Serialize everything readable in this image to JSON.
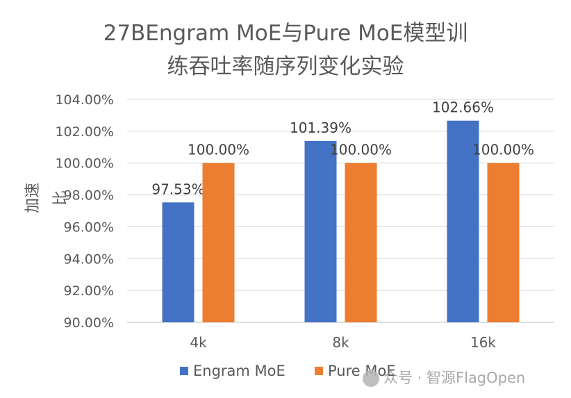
{
  "chart_data": {
    "type": "bar",
    "title_lines": [
      "27BEngram MoE与Pure MoE模型训",
      "练吞吐率随序列变化实验"
    ],
    "xlabel": "",
    "ylabel": "加速比",
    "categories": [
      "4k",
      "8k",
      "16k"
    ],
    "series": [
      {
        "name": "Engram MoE",
        "values": [
          97.53,
          101.39,
          102.66
        ],
        "labels": [
          "97.53%",
          "101.39%",
          "102.66%"
        ],
        "color": "#4472C4"
      },
      {
        "name": "Pure MoE",
        "values": [
          100.0,
          100.0,
          100.0
        ],
        "labels": [
          "100.00%",
          "100.00%",
          "100.00%"
        ],
        "color": "#ED7D31"
      }
    ],
    "ylim": [
      90,
      104
    ],
    "yticks": [
      "90.00%",
      "92.00%",
      "94.00%",
      "96.00%",
      "98.00%",
      "100.00%",
      "102.00%",
      "104.00%"
    ],
    "grid": true,
    "legend": "bottom"
  },
  "watermark": "众号 · 智源FlagOpen"
}
